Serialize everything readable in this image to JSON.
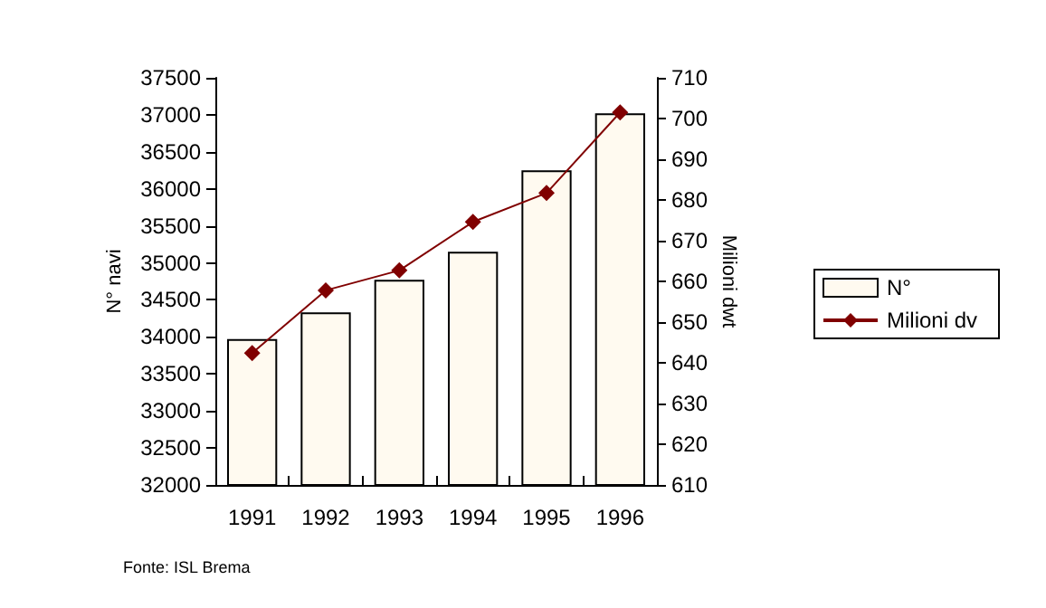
{
  "chart_data": {
    "type": "bar",
    "categories": [
      "1991",
      "1992",
      "1993",
      "1994",
      "1995",
      "1996"
    ],
    "series": [
      {
        "name": "N°",
        "color": "#fffaf0",
        "values": [
          33970,
          34330,
          34770,
          35150,
          36250,
          37020
        ]
      },
      {
        "name": "Milioni dv",
        "type": "line",
        "axis": "y2",
        "color": "#800000",
        "marker": "diamond",
        "values": [
          642.4,
          657.8,
          662.7,
          674.6,
          681.7,
          701.5
        ]
      }
    ],
    "ylabel": "N° navi",
    "y2label": "Milioni dwt",
    "ylim": [
      32000,
      37500
    ],
    "yticks": [
      32000,
      32500,
      33000,
      33500,
      34000,
      34500,
      35000,
      35500,
      36000,
      36500,
      37000,
      37500
    ],
    "y2lim": [
      610,
      710
    ],
    "y2ticks": [
      610,
      620,
      630,
      640,
      650,
      660,
      670,
      680,
      690,
      700,
      710
    ],
    "grid": false,
    "legend": "right",
    "line_style": "solid",
    "annotations": [
      "Fonte: ISL Brema"
    ]
  }
}
